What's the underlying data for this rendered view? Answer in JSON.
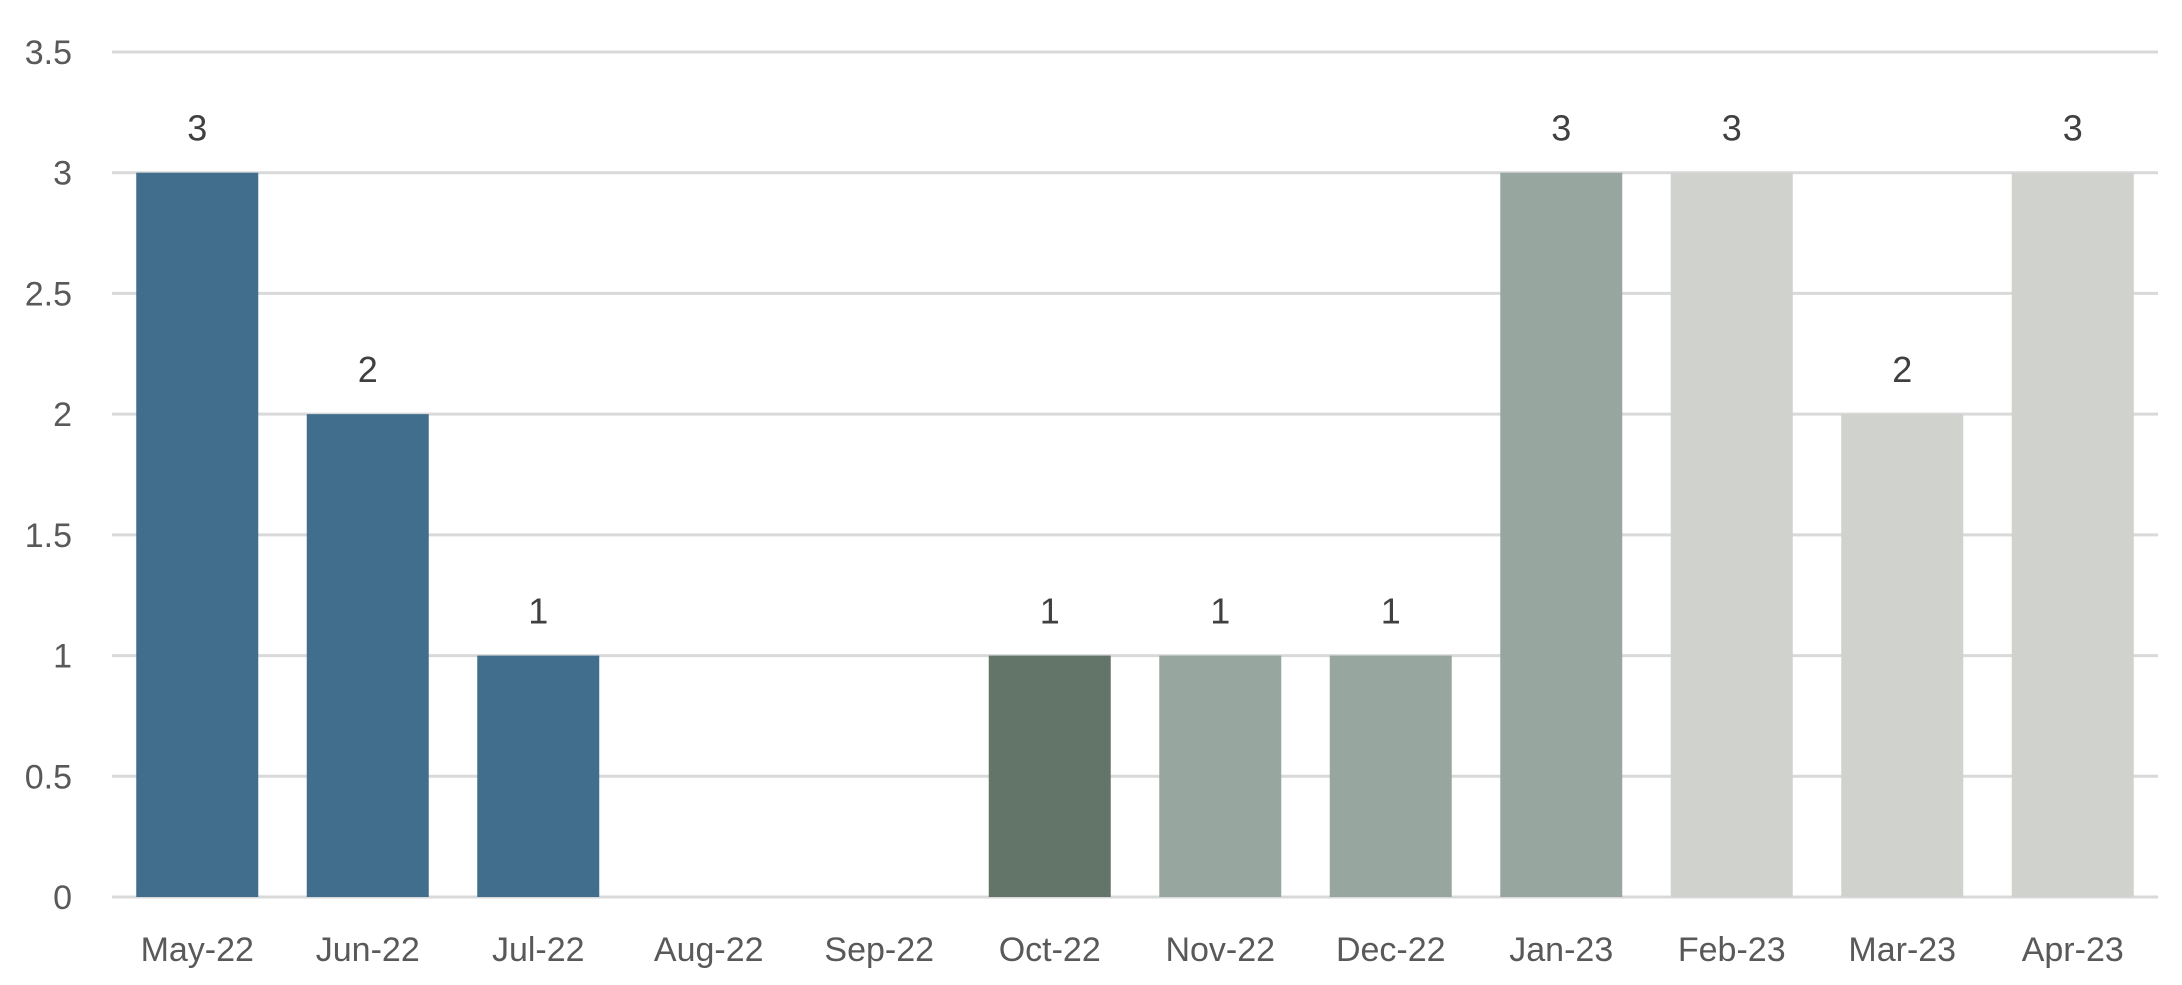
{
  "chart_data": {
    "type": "bar",
    "title": "",
    "xlabel": "",
    "ylabel": "",
    "categories": [
      "May-22",
      "Jun-22",
      "Jul-22",
      "Aug-22",
      "Sep-22",
      "Oct-22",
      "Nov-22",
      "Dec-22",
      "Jan-23",
      "Feb-23",
      "Mar-23",
      "Apr-23"
    ],
    "values": [
      3,
      2,
      1,
      0,
      0,
      1,
      1,
      1,
      3,
      3,
      2,
      3
    ],
    "data_labels": [
      "3",
      "2",
      "1",
      "",
      "",
      "1",
      "1",
      "1",
      "3",
      "3",
      "2",
      "3"
    ],
    "bar_colors": [
      "#416e8c",
      "#416e8c",
      "#416e8c",
      "#416e8c",
      "#416e8c",
      "#627568",
      "#97a79f",
      "#97a79f",
      "#97a79f",
      "#d0d2cd",
      "#d0d2cd",
      "#d0d2cd"
    ],
    "ylim": [
      0,
      3.5
    ],
    "y_ticks": [
      "0",
      "0.5",
      "1",
      "1.5",
      "2",
      "2.5",
      "3",
      "3.5"
    ],
    "grid": true,
    "legend": "none"
  }
}
